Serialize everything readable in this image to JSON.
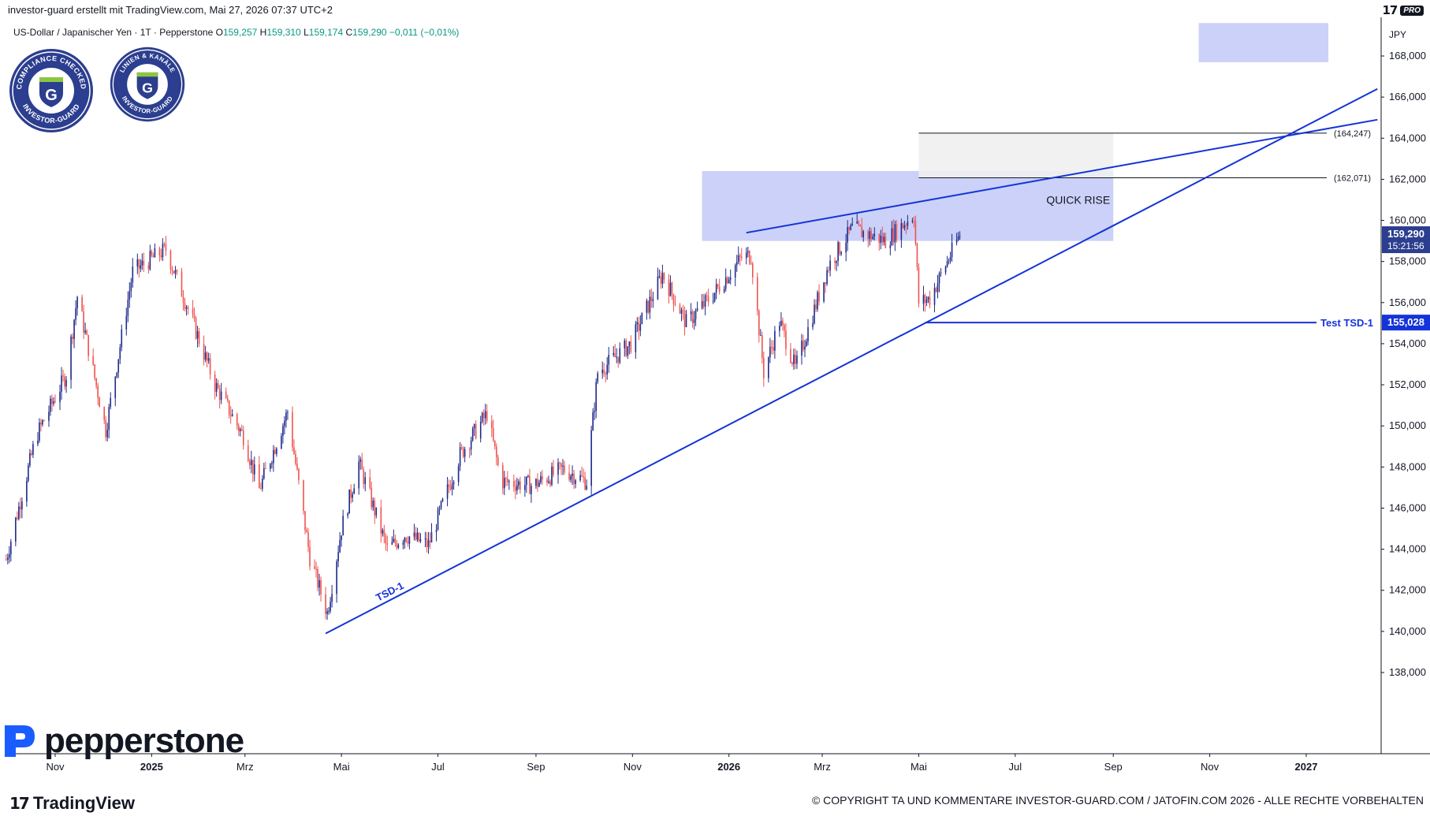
{
  "header": {
    "text": "investor-guard erstellt mit TradingView.com, Mai 27, 2026 07:37 UTC+2",
    "pro_badge": "PRO"
  },
  "symbol": {
    "name": "US-Dollar / Japanischer Yen · 1T · Pepperstone",
    "open_label": "O",
    "open": "159,257",
    "high_label": "H",
    "high": "159,310",
    "low_label": "L",
    "low": "159,174",
    "close_label": "C",
    "close": "159,290",
    "change": "−0,011 (−0,01%)"
  },
  "badges": [
    {
      "top": "COMPLIANCE CHECKED",
      "bottom": "INVESTOR-GUARD",
      "letter": "G"
    },
    {
      "top": "LINIEN & KANÄLE",
      "bottom": "INVESTOR-GUARD",
      "letter": "G"
    }
  ],
  "footer": {
    "brand": "TradingView",
    "copyright": "© COPYRIGHT TA UND KOMMENTARE INVESTOR-GUARD.COM / JATOFIN.COM 2026 - ALLE RECHTE VORBEHALTEN",
    "broker_logo": "pepperstone"
  },
  "colors": {
    "up": "#1e2a8a",
    "down": "#ef5350",
    "trendline": "#1433d8",
    "zone": "#c5ccf7",
    "fib_zone": "#efefef",
    "axis_text": "#131722"
  },
  "chart_data": {
    "type": "candlestick",
    "currency": "JPY",
    "ylim": [
      137000,
      170000
    ],
    "y_ticks": [
      {
        "value": 138000,
        "label": "138,000"
      },
      {
        "value": 140000,
        "label": "140,000"
      },
      {
        "value": 142000,
        "label": "142,000"
      },
      {
        "value": 144000,
        "label": "144,000"
      },
      {
        "value": 146000,
        "label": "146,000"
      },
      {
        "value": 148000,
        "label": "148,000"
      },
      {
        "value": 150000,
        "label": "150,000"
      },
      {
        "value": 152000,
        "label": "152,000"
      },
      {
        "value": 154000,
        "label": "154,000"
      },
      {
        "value": 156000,
        "label": "156,000"
      },
      {
        "value": 158000,
        "label": "158,000"
      },
      {
        "value": 160000,
        "label": "160,000"
      },
      {
        "value": 162000,
        "label": "162,000"
      },
      {
        "value": 164000,
        "label": "164,000"
      },
      {
        "value": 166000,
        "label": "166,000"
      },
      {
        "value": 168000,
        "label": "168,000"
      }
    ],
    "x_ticks": [
      {
        "date": "2024-11-01",
        "label": "Nov",
        "bold": false
      },
      {
        "date": "2025-01-01",
        "label": "2025",
        "bold": true
      },
      {
        "date": "2025-03-01",
        "label": "Mrz",
        "bold": false
      },
      {
        "date": "2025-05-01",
        "label": "Mai",
        "bold": false
      },
      {
        "date": "2025-07-01",
        "label": "Jul",
        "bold": false
      },
      {
        "date": "2025-09-01",
        "label": "Sep",
        "bold": false
      },
      {
        "date": "2025-11-01",
        "label": "Nov",
        "bold": false
      },
      {
        "date": "2026-01-01",
        "label": "2026",
        "bold": true
      },
      {
        "date": "2026-03-01",
        "label": "Mrz",
        "bold": false
      },
      {
        "date": "2026-05-01",
        "label": "Mai",
        "bold": false
      },
      {
        "date": "2026-07-01",
        "label": "Jul",
        "bold": false
      },
      {
        "date": "2026-09-01",
        "label": "Sep",
        "bold": false
      },
      {
        "date": "2026-11-01",
        "label": "Nov",
        "bold": false
      },
      {
        "date": "2027-01-01",
        "label": "2027",
        "bold": true
      }
    ],
    "price_path": [
      {
        "date": "2024-10-01",
        "close": 143500
      },
      {
        "date": "2024-10-20",
        "close": 149500
      },
      {
        "date": "2024-11-08",
        "close": 152500
      },
      {
        "date": "2024-11-15",
        "close": 156300
      },
      {
        "date": "2024-12-03",
        "close": 149800
      },
      {
        "date": "2024-12-20",
        "close": 157500
      },
      {
        "date": "2025-01-10",
        "close": 158600
      },
      {
        "date": "2025-01-25",
        "close": 155500
      },
      {
        "date": "2025-02-10",
        "close": 152000
      },
      {
        "date": "2025-02-28",
        "close": 149500
      },
      {
        "date": "2025-03-10",
        "close": 146900
      },
      {
        "date": "2025-03-28",
        "close": 150700
      },
      {
        "date": "2025-04-11",
        "close": 143600
      },
      {
        "date": "2025-04-22",
        "close": 140900
      },
      {
        "date": "2025-05-01",
        "close": 145000
      },
      {
        "date": "2025-05-12",
        "close": 148200
      },
      {
        "date": "2025-05-30",
        "close": 144000
      },
      {
        "date": "2025-06-10",
        "close": 144700
      },
      {
        "date": "2025-06-25",
        "close": 144200
      },
      {
        "date": "2025-07-15",
        "close": 148600
      },
      {
        "date": "2025-08-01",
        "close": 150600
      },
      {
        "date": "2025-08-10",
        "close": 147300
      },
      {
        "date": "2025-08-30",
        "close": 147100
      },
      {
        "date": "2025-09-18",
        "close": 147900
      },
      {
        "date": "2025-10-03",
        "close": 147300
      },
      {
        "date": "2025-10-10",
        "close": 152600
      },
      {
        "date": "2025-10-31",
        "close": 154000
      },
      {
        "date": "2025-11-20",
        "close": 157400
      },
      {
        "date": "2025-12-05",
        "close": 155000
      },
      {
        "date": "2025-12-22",
        "close": 156400
      },
      {
        "date": "2026-01-09",
        "close": 158200
      },
      {
        "date": "2026-01-15",
        "close": 158300
      },
      {
        "date": "2026-01-23",
        "close": 152600
      },
      {
        "date": "2026-02-02",
        "close": 155100
      },
      {
        "date": "2026-02-12",
        "close": 152800
      },
      {
        "date": "2026-03-05",
        "close": 157800
      },
      {
        "date": "2026-03-20",
        "close": 159600
      },
      {
        "date": "2026-04-10",
        "close": 159000
      },
      {
        "date": "2026-04-28",
        "close": 160300
      },
      {
        "date": "2026-05-01",
        "close": 156000
      },
      {
        "date": "2026-05-08",
        "close": 156200
      },
      {
        "date": "2026-05-27",
        "close": 159290
      }
    ],
    "zones": [
      {
        "date_from": "2025-12-15",
        "date_to": "2026-09-01",
        "price_from": 159000,
        "price_to": 162400,
        "label": "QUICK RISE"
      },
      {
        "date_from": "2026-10-25",
        "date_to": "2027-01-15",
        "price_from": 167700,
        "price_to": 169600,
        "label": ""
      },
      {
        "date_from": "2026-05-01",
        "date_to": "2026-09-01",
        "price_from": 162071,
        "price_to": 164247,
        "label": ""
      }
    ],
    "horizontal_levels": [
      {
        "value": 164247,
        "label": "(164,247)",
        "date_from": "2026-05-01",
        "date_to": "2026-12-01"
      },
      {
        "value": 162071,
        "label": "(162,071)",
        "date_from": "2026-05-01",
        "date_to": "2026-12-01"
      },
      {
        "value": 155028,
        "label": "Test TSD-1",
        "date_from": "2026-05-05",
        "date_to": "2026-12-31"
      }
    ],
    "trendlines": [
      {
        "name": "TSD-1",
        "from": {
          "date": "2025-04-21",
          "value": 139900
        },
        "to": {
          "date": "2027-02-15",
          "value": 166400
        }
      },
      {
        "name": "",
        "from": {
          "date": "2026-01-12",
          "value": 159400
        },
        "to": {
          "date": "2027-02-15",
          "value": 164900
        }
      }
    ],
    "price_labels": [
      {
        "value": 159290,
        "label": "159,290",
        "sub": "15:21:56"
      },
      {
        "value": 155028,
        "label": "155,028",
        "sub": ""
      }
    ]
  }
}
